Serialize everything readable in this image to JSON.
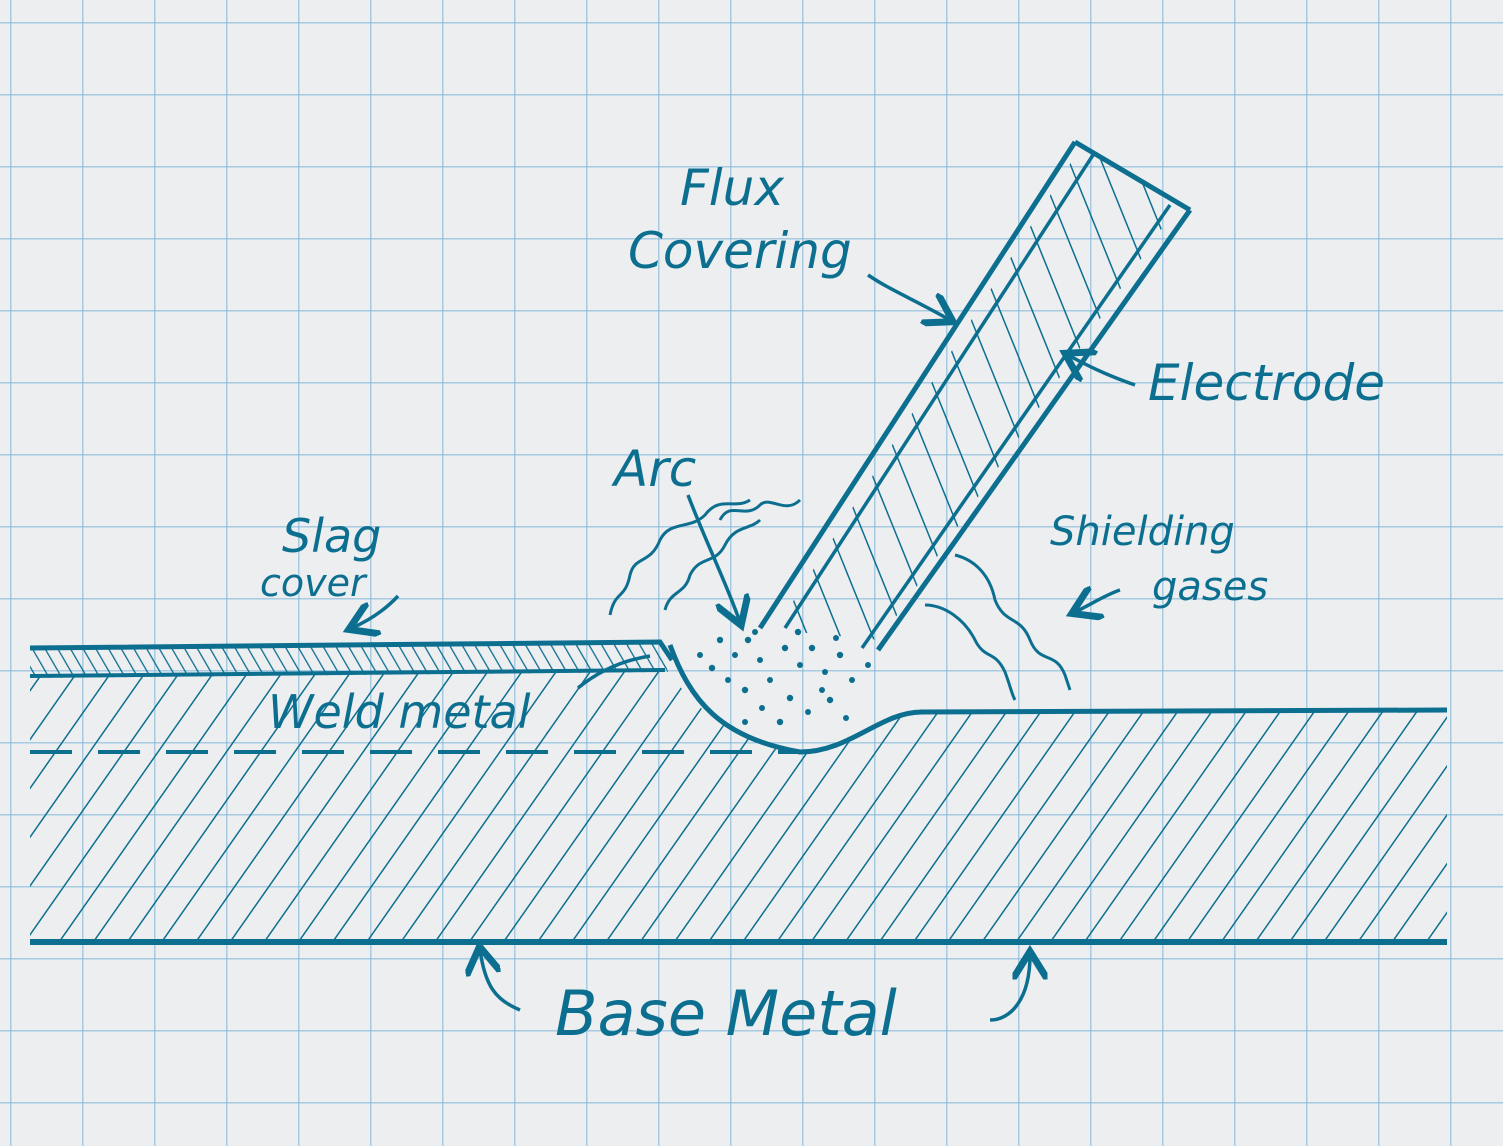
{
  "ink_color": "#0d6f90",
  "paper_color": "#eceef0",
  "grid_color": "#6eafd7",
  "labels": {
    "flux_covering_1": "Flux",
    "flux_covering_2": "Covering",
    "electrode": "Electrode",
    "arc": "Arc",
    "slag_cover_1": "Slag",
    "slag_cover_2": "cover",
    "shielding_gases_1": "Shielding",
    "shielding_gases_2": "gases",
    "weld_metal": "Weld metal",
    "base_metal": "Base Metal"
  }
}
